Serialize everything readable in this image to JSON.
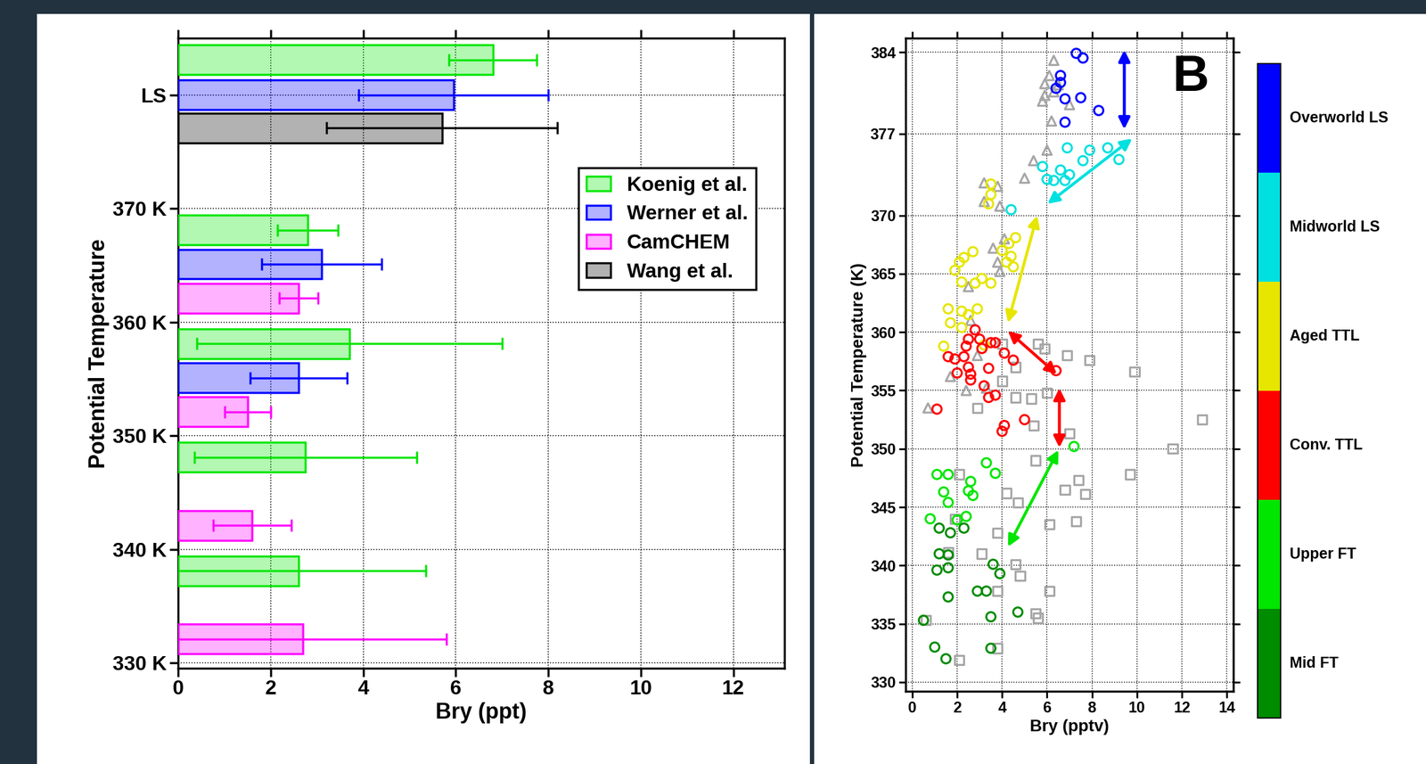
{
  "chart_data": [
    {
      "type": "bar",
      "orientation": "horizontal",
      "xlabel": "Bry (ppt)",
      "ylabel": "Potential Temperature",
      "xlim": [
        0,
        13.1
      ],
      "xticks": [
        0,
        2,
        4,
        6,
        8,
        10,
        12
      ],
      "ylim": [
        329.5,
        385
      ],
      "yticks": [
        {
          "value": 330,
          "label": "330 K"
        },
        {
          "value": 340,
          "label": "340 K"
        },
        {
          "value": 350,
          "label": "350 K"
        },
        {
          "value": 360,
          "label": "360 K"
        },
        {
          "value": 370,
          "label": "370 K"
        },
        {
          "value": 380,
          "label": "LS"
        }
      ],
      "grid": true,
      "legend": "upper right",
      "series": [
        {
          "name": "Koenig et al.",
          "color": "#00e600",
          "y": [
            383.1,
            368.1,
            358.1,
            348.1,
            338.1
          ],
          "values": [
            6.8,
            2.8,
            3.7,
            2.75,
            2.6
          ],
          "errors": [
            0.95,
            0.65,
            3.3,
            2.4,
            2.75
          ]
        },
        {
          "name": "Werner et al.",
          "color": "#0000ff",
          "y": [
            380.0,
            365.1,
            355.1
          ],
          "values": [
            5.95,
            3.1,
            2.6
          ],
          "errors": [
            2.05,
            1.3,
            1.05
          ]
        },
        {
          "name": "CamCHEM",
          "color": "#ff00ff",
          "y": [
            362.1,
            352.1,
            342.1,
            332.1
          ],
          "values": [
            2.6,
            1.5,
            1.6,
            2.7
          ],
          "errors": [
            0.42,
            0.5,
            0.85,
            3.1
          ]
        },
        {
          "name": "Wang et al.",
          "color": "#000000",
          "y": [
            377.1
          ],
          "values": [
            5.7
          ],
          "errors": [
            2.5
          ]
        }
      ]
    },
    {
      "type": "scatter",
      "xlabel": "Bry (pptv)",
      "ylabel": "Potential Temperature (K)",
      "xlim": [
        -0.3,
        14.3
      ],
      "xticks": [
        0,
        2,
        4,
        6,
        8,
        10,
        12,
        14
      ],
      "ylim": [
        329.2,
        385.2
      ],
      "yticks": [
        330,
        335,
        340,
        345,
        350,
        355,
        360,
        365,
        370,
        377,
        384
      ],
      "grid": true,
      "annotations": [
        {
          "text": "B"
        }
      ],
      "arrows": [
        {
          "from": [
            9.44,
            384.2
          ],
          "to": [
            9.44,
            377.4
          ],
          "color": "#0000ff"
        },
        {
          "from": [
            6.02,
            371.0
          ],
          "to": [
            9.79,
            376.6
          ],
          "color": "#00e0e0"
        },
        {
          "from": [
            4.26,
            360.8
          ],
          "to": [
            5.56,
            370.0
          ],
          "color": "#e6e600"
        },
        {
          "from": [
            4.26,
            360.1
          ],
          "to": [
            6.44,
            356.4
          ],
          "color": "#ff0000"
        },
        {
          "from": [
            6.55,
            355.2
          ],
          "to": [
            6.55,
            350.1
          ],
          "color": "#ff0000"
        },
        {
          "from": [
            4.26,
            341.6
          ],
          "to": [
            6.51,
            349.9
          ],
          "color": "#00e600"
        }
      ],
      "series": [
        {
          "name": "Overworld LS",
          "color": "#0000ff",
          "marker": "circle",
          "x": [
            7.3,
            7.6,
            6.6,
            6.6,
            6.4,
            7.5,
            6.8,
            8.3,
            6.8
          ],
          "y": [
            383.9,
            383.5,
            382.0,
            381.4,
            380.9,
            380.1,
            380.0,
            379.0,
            378.0
          ]
        },
        {
          "name": "Midworld LS",
          "color": "#00e0e0",
          "marker": "circle",
          "x": [
            6.9,
            7.9,
            8.7,
            9.2,
            7.6,
            5.8,
            6.6,
            6.0,
            6.3,
            6.8,
            7.0,
            4.4
          ],
          "y": [
            375.8,
            375.6,
            375.8,
            374.8,
            374.7,
            374.2,
            373.9,
            373.1,
            373.0,
            373.0,
            373.5,
            370.5
          ]
        },
        {
          "name": "Aged TTL",
          "color": "#e6e600",
          "marker": "circle",
          "x": [
            3.5,
            3.5,
            3.4,
            4.6,
            4.3,
            4.0,
            4.4,
            4.2,
            4.5,
            2.7,
            2.3,
            2.1,
            1.9,
            2.2,
            2.8,
            3.5,
            1.6,
            2.2,
            2.5,
            2.9,
            1.7,
            2.2,
            1.4,
            3.2,
            3.1
          ],
          "y": [
            372.7,
            371.8,
            371.0,
            368.1,
            367.6,
            367.0,
            366.5,
            366.0,
            365.6,
            366.9,
            366.4,
            366.0,
            365.3,
            364.3,
            364.2,
            364.2,
            362.0,
            361.8,
            361.5,
            362.0,
            360.8,
            360.4,
            358.8,
            358.9,
            364.6
          ]
        },
        {
          "name": "Conv. TTL",
          "color": "#ff0000",
          "marker": "circle",
          "x": [
            2.8,
            2.5,
            3.0,
            3.5,
            3.7,
            2.4,
            3.1,
            1.6,
            1.9,
            2.3,
            4.1,
            4.5,
            2.5,
            3.4,
            2.6,
            6.4,
            2.6,
            3.2,
            3.7,
            3.4,
            5.0,
            4.1,
            4.0,
            1.1,
            2.0
          ],
          "y": [
            360.2,
            359.4,
            359.4,
            359.1,
            359.1,
            358.8,
            358.6,
            357.9,
            357.7,
            357.9,
            358.2,
            357.6,
            357.0,
            356.9,
            356.4,
            356.7,
            355.9,
            355.4,
            354.6,
            354.4,
            352.5,
            352.0,
            351.5,
            353.4,
            356.5
          ]
        },
        {
          "name": "Upper FT",
          "color": "#00e600",
          "marker": "circle",
          "x": [
            7.2,
            1.1,
            1.6,
            3.3,
            3.7,
            2.6,
            1.4,
            1.6,
            2.5,
            2.7,
            0.8,
            2.0,
            2.4
          ],
          "y": [
            350.2,
            347.8,
            347.8,
            348.8,
            347.9,
            347.2,
            346.3,
            345.4,
            346.4,
            346.0,
            344.0,
            343.9,
            344.2
          ]
        },
        {
          "name": "Mid FT",
          "color": "#008c00",
          "marker": "circle",
          "x": [
            1.2,
            1.7,
            2.3,
            1.2,
            1.6,
            1.1,
            1.6,
            3.6,
            3.9,
            3.3,
            2.9,
            1.6,
            4.7,
            3.5,
            0.5,
            1.0,
            3.5,
            1.5
          ],
          "y": [
            343.2,
            342.8,
            343.2,
            341.0,
            340.9,
            339.6,
            339.8,
            340.1,
            339.3,
            337.8,
            337.8,
            337.3,
            336.0,
            335.6,
            335.3,
            333.0,
            332.9,
            332.0
          ]
        },
        {
          "color": "#a6a6a6",
          "marker": "triangle",
          "x": [
            6.3,
            6.1,
            5.9,
            6.5,
            5.9,
            6.3,
            7.0,
            6.2,
            5.8,
            6.0,
            5.4,
            5.0,
            3.8,
            3.2,
            3.2,
            3.9,
            4.1,
            3.6,
            3.8,
            3.9,
            2.5,
            2.6,
            2.9,
            1.7,
            2.4,
            0.7,
            3.3
          ],
          "y": [
            383.3,
            382.0,
            381.3,
            381.2,
            380.3,
            380.6,
            379.5,
            378.1,
            379.8,
            375.6,
            374.7,
            373.2,
            372.5,
            372.8,
            371.2,
            370.8,
            368.0,
            367.2,
            366.0,
            365.2,
            363.9,
            361.0,
            358.0,
            356.2,
            355.0,
            353.5,
            355.2
          ]
        },
        {
          "color": "#a6a6a6",
          "marker": "square",
          "x": [
            4.0,
            5.6,
            5.9,
            6.9,
            7.9,
            4.6,
            4.0,
            6.0,
            5.3,
            4.6,
            2.9,
            5.4,
            9.9,
            12.9,
            11.6,
            7.0,
            5.5,
            6.8,
            7.4,
            7.7,
            9.7,
            6.1,
            7.3,
            4.2,
            4.7,
            2.1,
            1.9,
            3.8,
            3.1,
            1.6,
            4.6,
            4.8,
            3.8,
            6.1,
            5.5,
            5.6,
            0.6,
            3.8,
            2.1
          ],
          "y": [
            359.0,
            359.0,
            358.6,
            358.0,
            357.6,
            357.0,
            355.8,
            354.8,
            354.3,
            354.4,
            353.5,
            352.0,
            356.6,
            352.5,
            350.0,
            351.3,
            349.0,
            346.5,
            347.3,
            346.1,
            347.8,
            343.5,
            343.8,
            346.2,
            345.4,
            347.8,
            344.0,
            342.8,
            341.0,
            341.1,
            340.1,
            339.1,
            337.8,
            337.8,
            335.9,
            335.5,
            335.3,
            332.9,
            331.9
          ]
        }
      ]
    }
  ]
}
